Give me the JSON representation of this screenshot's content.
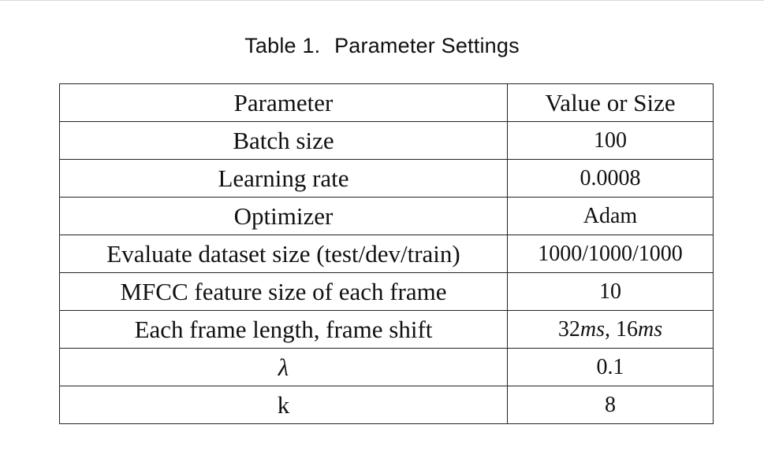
{
  "caption": {
    "label": "Table 1.",
    "title": "Parameter Settings"
  },
  "table": {
    "headers": [
      "Parameter",
      "Value or Size"
    ],
    "rows": [
      {
        "parameter": "Batch size",
        "value": "100"
      },
      {
        "parameter": "Learning rate",
        "value": "0.0008"
      },
      {
        "parameter": "Optimizer",
        "value": "Adam"
      },
      {
        "parameter": "Evaluate dataset size (test/dev/train)",
        "value": "1000/1000/1000"
      },
      {
        "parameter": "MFCC feature size of each frame",
        "value": "10"
      },
      {
        "parameter": "Each frame length, frame shift",
        "value": "32ms, 16ms"
      },
      {
        "parameter": "λ",
        "value": "0.1"
      },
      {
        "parameter": "k",
        "value": "8"
      }
    ]
  }
}
